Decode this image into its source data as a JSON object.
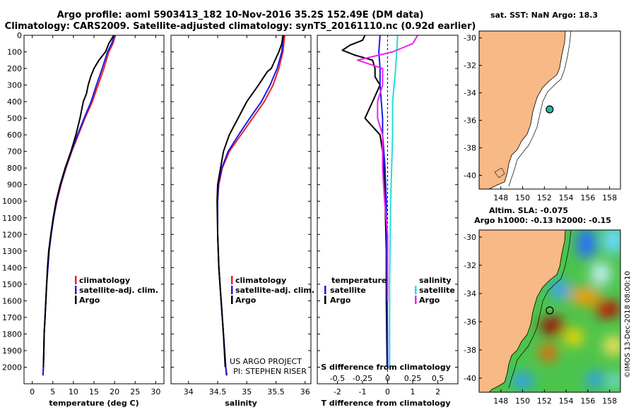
{
  "title": {
    "line1": "Argo profile: aoml 5903413_182 10-Nov-2016 35.2S 152.49E (DM data)",
    "line2": "Climatology: CARS2009. Satellite-adjusted climatology: synTS_20161110.nc (0.92d earlier)"
  },
  "credits": {
    "project": "US ARGO PROJECT",
    "pi": "PI: STEPHEN RISER",
    "imos": "©IMOS 13-Dec-2018 08:00:10"
  },
  "colors": {
    "climatology": "#ee2020",
    "satellite": "#1a1aee",
    "argo": "#000000",
    "sat_salinity": "#22dddd",
    "argo_salinity_diff": "#ee22ee",
    "land": "#f7b985"
  },
  "chart_data": [
    {
      "id": "temperature",
      "type": "line",
      "xlabel": "temperature (deg C)",
      "ylabel": "",
      "xlim": [
        -2,
        32
      ],
      "ylim": [
        2100,
        0
      ],
      "xticks": [
        0,
        5,
        10,
        15,
        20,
        25,
        30
      ],
      "yticks": [
        0,
        100,
        200,
        300,
        400,
        500,
        600,
        700,
        800,
        900,
        1000,
        1100,
        1200,
        1300,
        1400,
        1500,
        1600,
        1700,
        1800,
        1900,
        2000
      ],
      "legend": [
        "climatology",
        "satellite-adj. clim.",
        "Argo"
      ],
      "series": [
        {
          "name": "climatology",
          "color_key": "climatology",
          "points": [
            [
              20.2,
              0
            ],
            [
              19.6,
              50
            ],
            [
              18.6,
              100
            ],
            [
              17.4,
              200
            ],
            [
              16.0,
              300
            ],
            [
              14.6,
              400
            ],
            [
              12.8,
              500
            ],
            [
              11.2,
              600
            ],
            [
              9.6,
              700
            ],
            [
              8.2,
              800
            ],
            [
              7.0,
              900
            ],
            [
              6.0,
              1000
            ],
            [
              5.2,
              1100
            ],
            [
              4.6,
              1200
            ],
            [
              4.1,
              1300
            ],
            [
              3.8,
              1400
            ],
            [
              3.5,
              1500
            ],
            [
              3.3,
              1600
            ],
            [
              3.1,
              1700
            ],
            [
              2.9,
              1800
            ],
            [
              2.8,
              1900
            ],
            [
              2.7,
              2000
            ],
            [
              2.6,
              2050
            ]
          ]
        },
        {
          "name": "satellite-adj. clim.",
          "color_key": "satellite",
          "points": [
            [
              20.0,
              0
            ],
            [
              19.3,
              50
            ],
            [
              18.3,
              100
            ],
            [
              17.0,
              200
            ],
            [
              15.6,
              300
            ],
            [
              14.3,
              400
            ],
            [
              12.6,
              500
            ],
            [
              11.0,
              600
            ],
            [
              9.5,
              700
            ],
            [
              8.1,
              800
            ],
            [
              6.9,
              900
            ],
            [
              5.9,
              1000
            ],
            [
              5.2,
              1100
            ],
            [
              4.6,
              1200
            ],
            [
              4.1,
              1300
            ],
            [
              3.8,
              1400
            ],
            [
              3.5,
              1500
            ],
            [
              3.3,
              1600
            ],
            [
              3.1,
              1700
            ],
            [
              2.9,
              1800
            ],
            [
              2.8,
              1900
            ],
            [
              2.7,
              2000
            ],
            [
              2.6,
              2050
            ]
          ]
        },
        {
          "name": "Argo",
          "color_key": "argo",
          "points": [
            [
              19.8,
              0
            ],
            [
              18.6,
              50
            ],
            [
              17.8,
              100
            ],
            [
              16.2,
              150
            ],
            [
              15.0,
              200
            ],
            [
              14.2,
              250
            ],
            [
              13.6,
              300
            ],
            [
              13.2,
              350
            ],
            [
              12.4,
              400
            ],
            [
              11.6,
              500
            ],
            [
              10.6,
              600
            ],
            [
              9.4,
              700
            ],
            [
              8.0,
              800
            ],
            [
              6.8,
              900
            ],
            [
              5.8,
              1000
            ],
            [
              5.1,
              1100
            ],
            [
              4.5,
              1200
            ],
            [
              4.0,
              1300
            ],
            [
              3.7,
              1400
            ],
            [
              3.5,
              1500
            ],
            [
              3.3,
              1600
            ],
            [
              3.1,
              1700
            ],
            [
              2.9,
              1800
            ],
            [
              2.8,
              1900
            ],
            [
              2.7,
              2000
            ]
          ]
        }
      ]
    },
    {
      "id": "salinity",
      "type": "line",
      "xlabel": "salinity",
      "xlim": [
        33.7,
        36.1
      ],
      "ylim": [
        2100,
        0
      ],
      "xticks": [
        34,
        34.5,
        35,
        35.5,
        36
      ],
      "xtick_labels": [
        "34",
        "34.5",
        "35",
        "35.5",
        "36"
      ],
      "legend": [
        "climatology",
        "satellite-adj. clim.",
        "Argo"
      ],
      "series": [
        {
          "name": "climatology",
          "color_key": "climatology",
          "points": [
            [
              35.65,
              0
            ],
            [
              35.62,
              100
            ],
            [
              35.55,
              200
            ],
            [
              35.45,
              300
            ],
            [
              35.3,
              400
            ],
            [
              35.1,
              500
            ],
            [
              34.9,
              600
            ],
            [
              34.7,
              700
            ],
            [
              34.58,
              800
            ],
            [
              34.52,
              900
            ],
            [
              34.5,
              1000
            ],
            [
              34.5,
              1200
            ],
            [
              34.52,
              1400
            ],
            [
              34.56,
              1600
            ],
            [
              34.6,
              1800
            ],
            [
              34.64,
              2000
            ],
            [
              34.66,
              2050
            ]
          ]
        },
        {
          "name": "satellite-adj. clim.",
          "color_key": "satellite",
          "points": [
            [
              35.63,
              0
            ],
            [
              35.6,
              100
            ],
            [
              35.52,
              200
            ],
            [
              35.4,
              300
            ],
            [
              35.25,
              400
            ],
            [
              35.05,
              500
            ],
            [
              34.86,
              600
            ],
            [
              34.68,
              700
            ],
            [
              34.57,
              800
            ],
            [
              34.51,
              900
            ],
            [
              34.5,
              1000
            ],
            [
              34.5,
              1200
            ],
            [
              34.52,
              1400
            ],
            [
              34.56,
              1600
            ],
            [
              34.6,
              1800
            ],
            [
              34.64,
              2000
            ],
            [
              34.65,
              2050
            ]
          ]
        },
        {
          "name": "Argo",
          "color_key": "argo",
          "points": [
            [
              35.62,
              0
            ],
            [
              35.6,
              50
            ],
            [
              35.55,
              100
            ],
            [
              35.42,
              200
            ],
            [
              35.35,
              220
            ],
            [
              35.2,
              300
            ],
            [
              35.0,
              400
            ],
            [
              34.85,
              500
            ],
            [
              34.7,
              600
            ],
            [
              34.6,
              700
            ],
            [
              34.55,
              800
            ],
            [
              34.5,
              900
            ],
            [
              34.49,
              1000
            ],
            [
              34.5,
              1200
            ],
            [
              34.52,
              1400
            ],
            [
              34.56,
              1600
            ],
            [
              34.6,
              1800
            ],
            [
              34.63,
              2000
            ]
          ]
        }
      ]
    },
    {
      "id": "differences",
      "type": "line",
      "xlabel": "T difference from climatology",
      "xlabel_top": "S difference from climatology",
      "xlim": [
        -2.8,
        2.8
      ],
      "ylim": [
        2100,
        0
      ],
      "xticks": [
        -2,
        -1,
        0,
        1,
        2
      ],
      "xticks_s": [
        -0.5,
        -0.25,
        0,
        0.25,
        0.5
      ],
      "xtick_labels_s": [
        "-0.5",
        "-0.25",
        "0",
        "0.25",
        "0.5"
      ],
      "legend_left": {
        "title": "temperature",
        "items": [
          "satellite",
          "Argo"
        ]
      },
      "legend_right": {
        "title": "salinity",
        "items": [
          "satellite",
          "Argo"
        ]
      },
      "series": [
        {
          "name": "temperature Argo",
          "color_key": "argo",
          "points": [
            [
              -0.9,
              0
            ],
            [
              -1.0,
              30
            ],
            [
              -1.5,
              60
            ],
            [
              -1.8,
              90
            ],
            [
              -1.3,
              120
            ],
            [
              -0.6,
              150
            ],
            [
              -0.5,
              200
            ],
            [
              -0.5,
              250
            ],
            [
              -0.3,
              300
            ],
            [
              -0.6,
              400
            ],
            [
              -0.9,
              500
            ],
            [
              -0.6,
              550
            ],
            [
              -0.3,
              600
            ],
            [
              -0.2,
              700
            ],
            [
              -0.15,
              800
            ],
            [
              -0.1,
              1000
            ],
            [
              -0.05,
              1300
            ],
            [
              -0.05,
              1600
            ],
            [
              -0.02,
              2000
            ]
          ]
        },
        {
          "name": "temperature satellite",
          "color_key": "satellite",
          "points": [
            [
              -0.3,
              0
            ],
            [
              -0.35,
              100
            ],
            [
              -0.3,
              200
            ],
            [
              -0.3,
              300
            ],
            [
              -0.25,
              400
            ],
            [
              -0.2,
              500
            ],
            [
              -0.2,
              600
            ],
            [
              -0.15,
              700
            ],
            [
              -0.1,
              800
            ],
            [
              -0.05,
              1000
            ],
            [
              -0.02,
              1500
            ],
            [
              0,
              2000
            ]
          ]
        },
        {
          "name": "salinity satellite",
          "color_key": "sat_salinity",
          "points": [
            [
              0.1,
              0
            ],
            [
              0.08,
              200
            ],
            [
              0.05,
              400
            ],
            [
              0.05,
              600
            ],
            [
              0.03,
              1000
            ],
            [
              0.02,
              1500
            ],
            [
              0.02,
              2000
            ]
          ]
        },
        {
          "name": "salinity Argo",
          "color_key": "argo_salinity_diff",
          "points": [
            [
              0.3,
              0
            ],
            [
              0.25,
              50
            ],
            [
              0.05,
              100
            ],
            [
              -0.3,
              150
            ],
            [
              -0.05,
              200
            ],
            [
              -0.05,
              300
            ],
            [
              -0.1,
              400
            ],
            [
              -0.1,
              500
            ],
            [
              -0.05,
              600
            ],
            [
              -0.05,
              700
            ],
            [
              -0.05,
              800
            ],
            [
              -0.03,
              1000
            ],
            [
              0,
              1200
            ],
            [
              0,
              1600
            ]
          ]
        }
      ]
    },
    {
      "id": "sst_map",
      "type": "map",
      "title": "sat. SST: NaN Argo: 18.3",
      "xlim": [
        146,
        159
      ],
      "ylim": [
        -41,
        -29.5
      ],
      "xticks": [
        148,
        150,
        152,
        154,
        156,
        158
      ],
      "yticks": [
        -30,
        -32,
        -34,
        -36,
        -38,
        -40
      ],
      "marker": {
        "lon": 152.49,
        "lat": -35.2
      }
    },
    {
      "id": "sla_map",
      "type": "map",
      "title": "Altim. SLA: -0.075",
      "subtitle": "Argo h1000: -0.13 h2000: -0.15",
      "xlim": [
        146,
        159
      ],
      "ylim": [
        -41,
        -29.5
      ],
      "xticks": [
        148,
        150,
        152,
        154,
        156,
        158
      ],
      "yticks": [
        -30,
        -32,
        -34,
        -36,
        -38,
        -40
      ],
      "marker": {
        "lon": 152.49,
        "lat": -35.2
      }
    }
  ]
}
